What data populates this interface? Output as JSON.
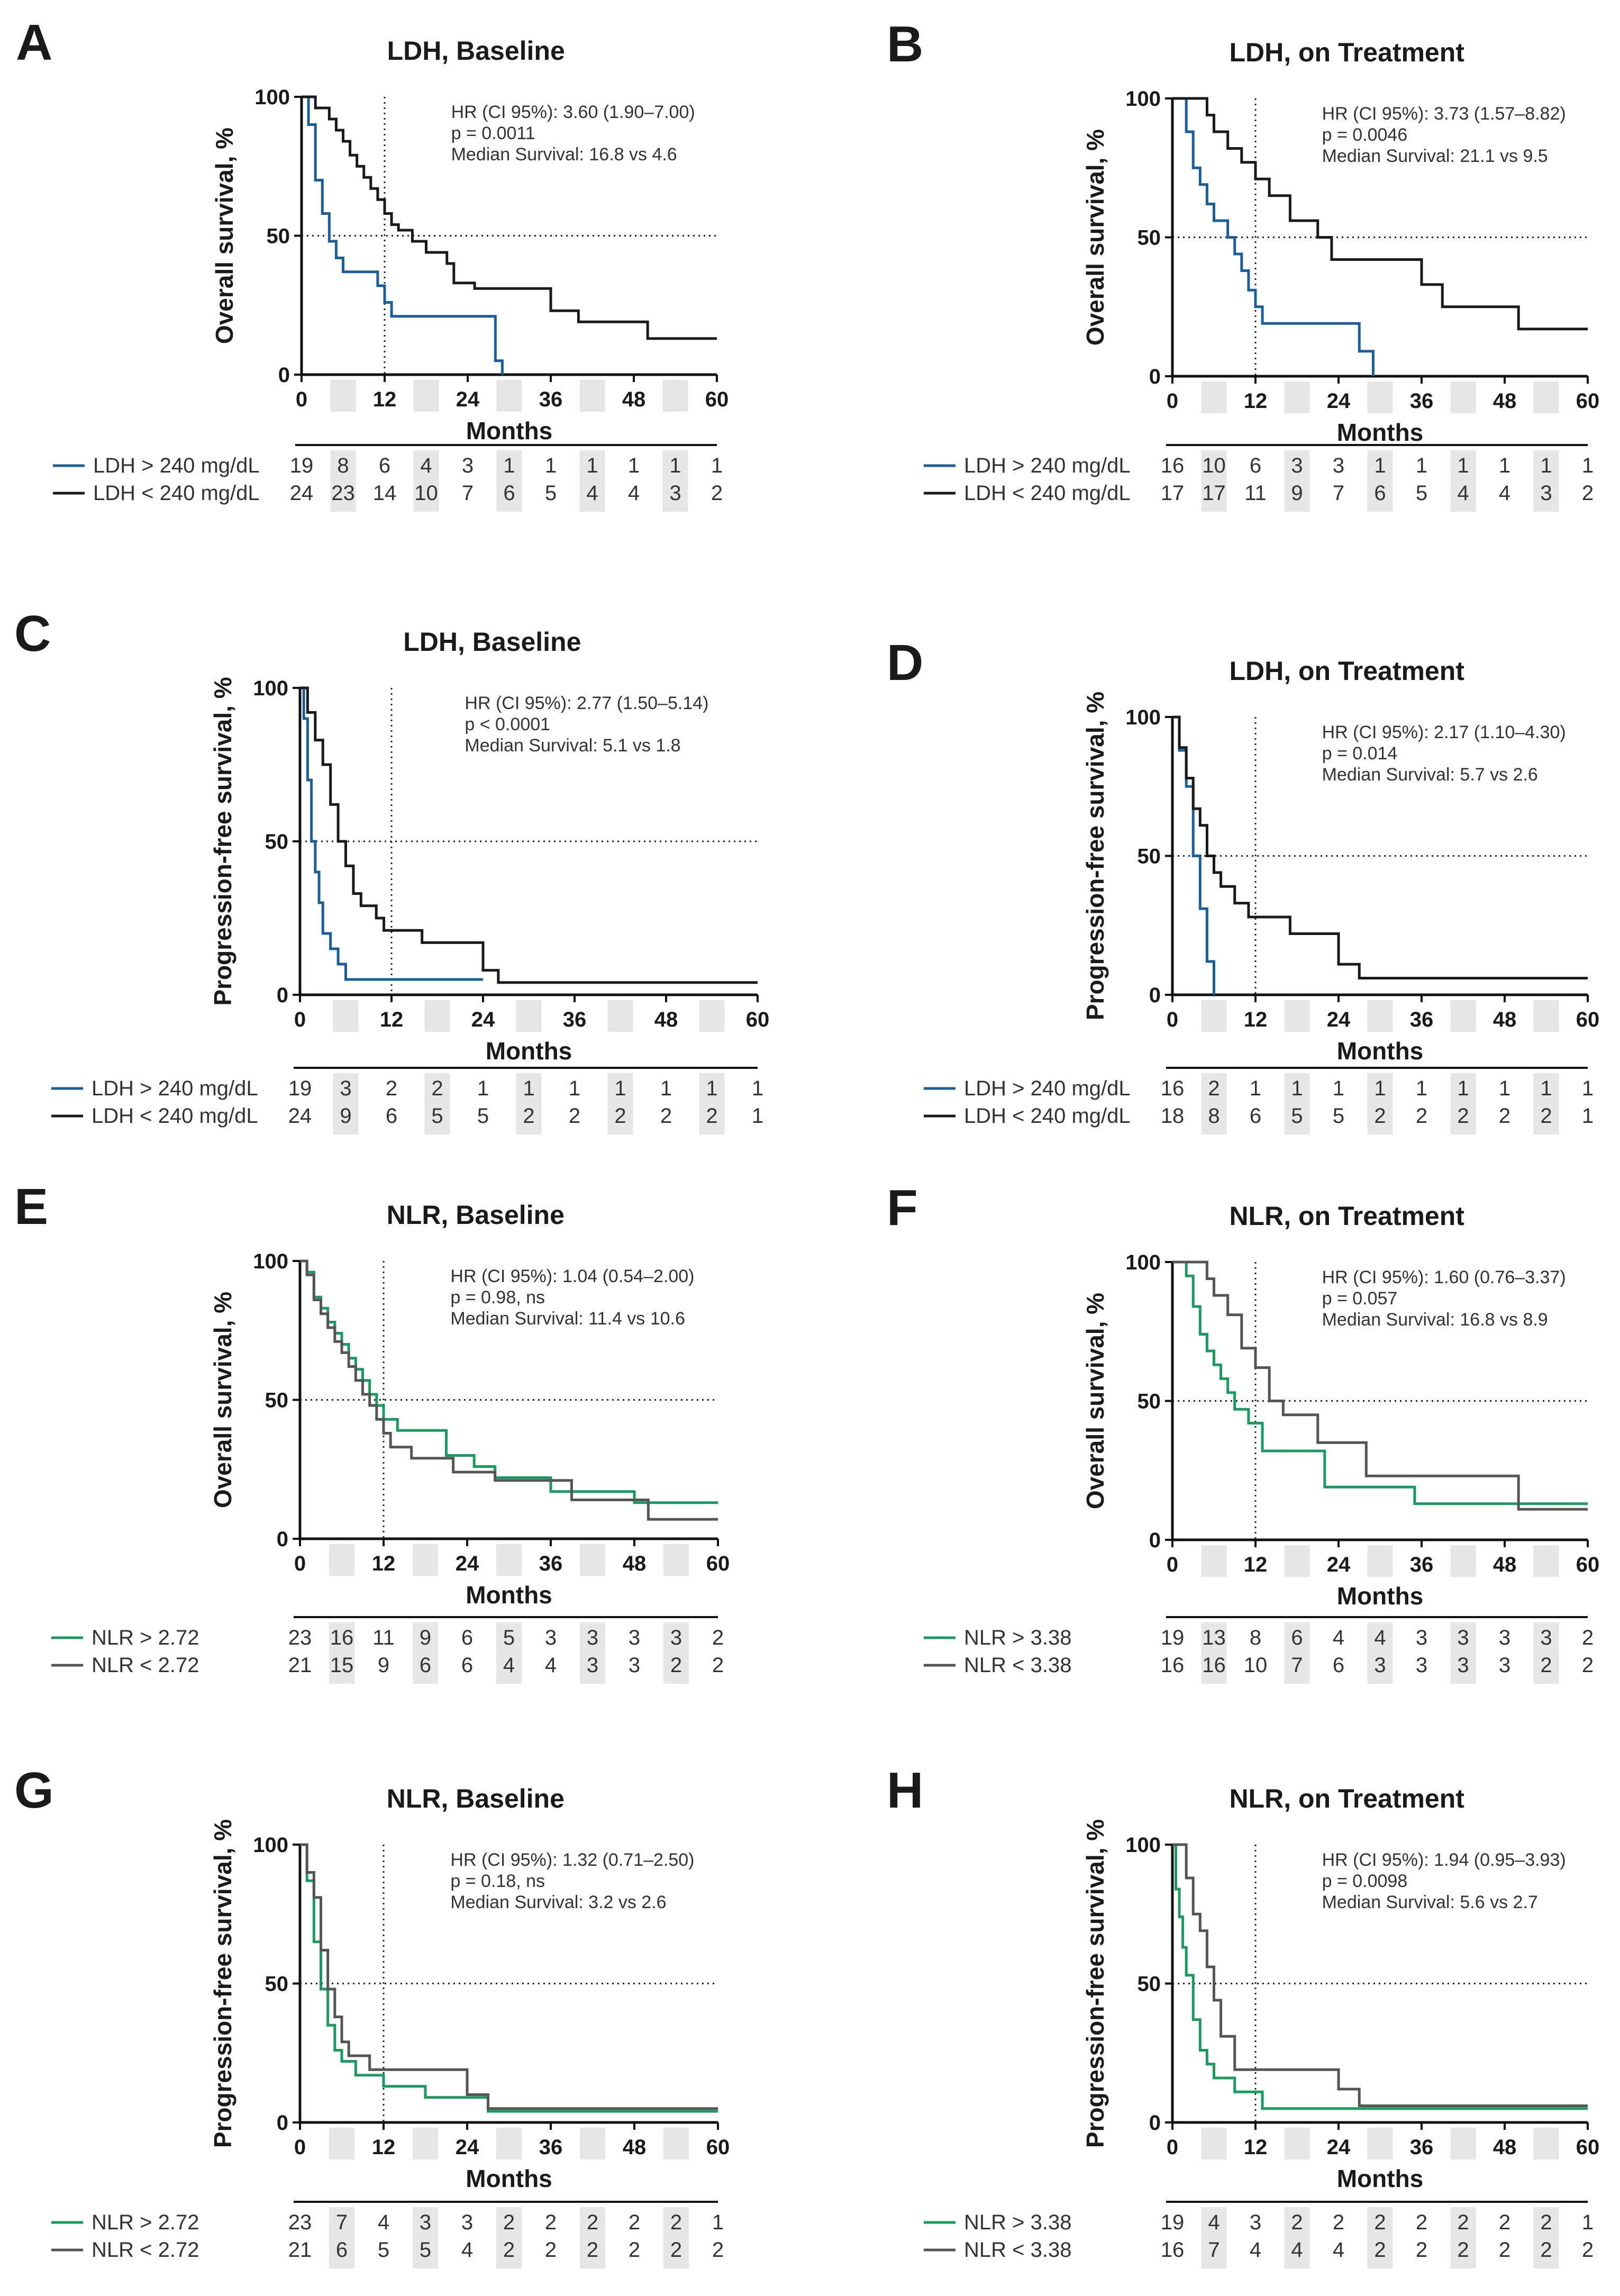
{
  "chart_data": [
    {
      "panel": "A",
      "type": "line",
      "subtype": "kaplan-meier",
      "title": "LDH, Baseline",
      "ylabel": "Overall survival, %",
      "xlabel": "Months",
      "xlim": [
        0,
        60
      ],
      "ylim": [
        0,
        100
      ],
      "xticks": [
        "0",
        "12",
        "24",
        "36",
        "48",
        "60"
      ],
      "yticks": [
        "0",
        "50",
        "100"
      ],
      "stats": [
        "HR (CI 95%): 3.60 (1.90–7.00)",
        "p = 0.0011",
        "Median Survival: 16.8 vs 4.6"
      ],
      "median_lines": {
        "x": 12,
        "y": 50
      },
      "series": [
        {
          "name": "LDH > 240 mg/dL",
          "color": "#1a5e9a",
          "x": [
            0,
            1,
            2,
            3,
            4,
            5,
            6,
            7,
            11,
            12,
            13,
            24,
            28,
            29
          ],
          "y": [
            100,
            90,
            70,
            58,
            48,
            42,
            37,
            37,
            32,
            26,
            21,
            21,
            5,
            0
          ],
          "at_risk": [
            "19",
            "8",
            "6",
            "4",
            "3",
            "1",
            "1",
            "1",
            "1",
            "1",
            "1"
          ]
        },
        {
          "name": "LDH < 240 mg/dL",
          "color": "#1a1a1a",
          "x": [
            0,
            2,
            4,
            5,
            6,
            7,
            8,
            9,
            10,
            11,
            12,
            13,
            14,
            16,
            18,
            21,
            22,
            25,
            36,
            40,
            50,
            60
          ],
          "y": [
            100,
            96,
            92,
            88,
            84,
            79,
            75,
            71,
            67,
            63,
            58,
            54,
            52,
            48,
            44,
            40,
            33,
            31,
            23,
            19,
            13,
            13
          ],
          "at_risk": [
            "24",
            "23",
            "14",
            "10",
            "7",
            "6",
            "5",
            "4",
            "4",
            "3",
            "2"
          ]
        }
      ]
    },
    {
      "panel": "B",
      "type": "line",
      "subtype": "kaplan-meier",
      "title": "LDH, on Treatment",
      "ylabel": "Overall survival, %",
      "xlabel": "Months",
      "xlim": [
        0,
        60
      ],
      "ylim": [
        0,
        100
      ],
      "xticks": [
        "0",
        "12",
        "24",
        "36",
        "48",
        "60"
      ],
      "yticks": [
        "0",
        "50",
        "100"
      ],
      "stats": [
        "HR (CI 95%): 3.73 (1.57–8.82)",
        "p = 0.0046",
        "Median Survival: 21.1 vs 9.5"
      ],
      "median_lines": {
        "x": 12,
        "y": 50
      },
      "series": [
        {
          "name": "LDH > 240 mg/dL",
          "color": "#1a5e9a",
          "x": [
            0,
            2,
            3,
            4,
            5,
            6,
            7,
            8,
            9,
            10,
            11,
            12,
            13,
            27,
            29
          ],
          "y": [
            100,
            88,
            75,
            69,
            62,
            56,
            56,
            50,
            44,
            38,
            31,
            25,
            19,
            9,
            0
          ],
          "at_risk": [
            "16",
            "10",
            "6",
            "3",
            "3",
            "1",
            "1",
            "1",
            "1",
            "1",
            "1"
          ]
        },
        {
          "name": "LDH < 240 mg/dL",
          "color": "#1a1a1a",
          "x": [
            0,
            5,
            6,
            8,
            10,
            12,
            14,
            17,
            21,
            23,
            34,
            36,
            39,
            50,
            60
          ],
          "y": [
            100,
            94,
            88,
            82,
            77,
            71,
            65,
            56,
            50,
            42,
            42,
            33,
            25,
            17,
            17
          ],
          "at_risk": [
            "17",
            "17",
            "11",
            "9",
            "7",
            "6",
            "5",
            "4",
            "4",
            "3",
            "2"
          ]
        }
      ]
    },
    {
      "panel": "C",
      "type": "line",
      "subtype": "kaplan-meier",
      "title": "LDH, Baseline",
      "ylabel": "Progression-free survival, %",
      "xlabel": "Months",
      "xlim": [
        0,
        60
      ],
      "ylim": [
        0,
        100
      ],
      "xticks": [
        "0",
        "12",
        "24",
        "36",
        "48",
        "60"
      ],
      "yticks": [
        "0",
        "50",
        "100"
      ],
      "stats": [
        "HR (CI 95%): 2.77 (1.50–5.14)",
        "p < 0.0001",
        "Median Survival: 5.1 vs 1.8"
      ],
      "median_lines": {
        "x": 12,
        "y": 50
      },
      "series": [
        {
          "name": "LDH > 240 mg/dL",
          "color": "#1a5e9a",
          "x": [
            0,
            0.5,
            1,
            1.5,
            2,
            2.5,
            3,
            4,
            5,
            6,
            24
          ],
          "y": [
            100,
            90,
            70,
            50,
            40,
            30,
            20,
            15,
            10,
            5,
            5
          ],
          "at_risk": [
            "19",
            "3",
            "2",
            "2",
            "1",
            "1",
            "1",
            "1",
            "1",
            "1",
            "1"
          ]
        },
        {
          "name": "LDH < 240 mg/dL",
          "color": "#1a1a1a",
          "x": [
            0,
            1,
            2,
            3,
            4,
            5,
            6,
            7,
            8,
            10,
            11,
            16,
            24,
            26,
            28,
            60
          ],
          "y": [
            100,
            92,
            83,
            75,
            62,
            50,
            42,
            33,
            29,
            25,
            21,
            17,
            8,
            4,
            4,
            4
          ],
          "at_risk": [
            "24",
            "9",
            "6",
            "5",
            "5",
            "2",
            "2",
            "2",
            "2",
            "2",
            "1"
          ]
        }
      ]
    },
    {
      "panel": "D",
      "type": "line",
      "subtype": "kaplan-meier",
      "title": "LDH, on Treatment",
      "ylabel": "Progression-free survival, %",
      "xlabel": "Months",
      "xlim": [
        0,
        60
      ],
      "ylim": [
        0,
        100
      ],
      "xticks": [
        "0",
        "12",
        "24",
        "36",
        "48",
        "60"
      ],
      "yticks": [
        "0",
        "50",
        "100"
      ],
      "stats": [
        "HR (CI 95%): 2.17 (1.10–4.30)",
        "p = 0.014",
        "Median Survival: 5.7 vs 2.6"
      ],
      "median_lines": {
        "x": 12,
        "y": 50
      },
      "series": [
        {
          "name": "LDH > 240 mg/dL",
          "color": "#1a5e9a",
          "x": [
            0,
            1,
            2,
            3,
            4,
            5,
            6
          ],
          "y": [
            100,
            88,
            75,
            50,
            31,
            12,
            0
          ],
          "at_risk": [
            "16",
            "2",
            "1",
            "1",
            "1",
            "1",
            "1",
            "1",
            "1",
            "1",
            "1"
          ]
        },
        {
          "name": "LDH < 240 mg/dL",
          "color": "#1a1a1a",
          "x": [
            0,
            1,
            2,
            3,
            4,
            5,
            6,
            7,
            9,
            11,
            17,
            24,
            27,
            60
          ],
          "y": [
            100,
            89,
            78,
            67,
            61,
            50,
            44,
            39,
            33,
            28,
            22,
            11,
            6,
            6
          ],
          "at_risk": [
            "18",
            "8",
            "6",
            "5",
            "5",
            "2",
            "2",
            "2",
            "2",
            "2",
            "1"
          ]
        }
      ]
    },
    {
      "panel": "E",
      "type": "line",
      "subtype": "kaplan-meier",
      "title": "NLR, Baseline",
      "ylabel": "Overall survival, %",
      "xlabel": "Months",
      "xlim": [
        0,
        60
      ],
      "ylim": [
        0,
        100
      ],
      "xticks": [
        "0",
        "12",
        "24",
        "36",
        "48",
        "60"
      ],
      "yticks": [
        "0",
        "50",
        "100"
      ],
      "stats": [
        "HR (CI 95%): 1.04 (0.54–2.00)",
        "p = 0.98, ns",
        "Median Survival: 11.4 vs 10.6"
      ],
      "median_lines": {
        "x": 12,
        "y": 50
      },
      "series": [
        {
          "name": "NLR > 2.72",
          "color": "#1a9a5e",
          "x": [
            0,
            1,
            2,
            3,
            4,
            5,
            6,
            7,
            8,
            9,
            10,
            11,
            12,
            14,
            21,
            25,
            28,
            36,
            48,
            60
          ],
          "y": [
            100,
            96,
            87,
            83,
            78,
            74,
            70,
            65,
            61,
            57,
            52,
            48,
            43,
            39,
            30,
            26,
            22,
            17,
            13,
            13
          ],
          "at_risk": [
            "23",
            "16",
            "11",
            "9",
            "6",
            "5",
            "3",
            "3",
            "3",
            "3",
            "2"
          ]
        },
        {
          "name": "NLR < 2.72",
          "color": "#555555",
          "x": [
            0,
            1,
            2,
            3,
            4,
            5,
            6,
            7,
            8,
            9,
            10,
            11,
            12,
            13,
            16,
            22,
            28,
            39,
            50,
            60
          ],
          "y": [
            100,
            95,
            86,
            81,
            76,
            71,
            67,
            62,
            57,
            52,
            48,
            43,
            38,
            33,
            29,
            24,
            21,
            14,
            7,
            7
          ],
          "at_risk": [
            "21",
            "15",
            "9",
            "6",
            "6",
            "4",
            "4",
            "3",
            "3",
            "2",
            "2"
          ]
        }
      ]
    },
    {
      "panel": "F",
      "type": "line",
      "subtype": "kaplan-meier",
      "title": "NLR, on Treatment",
      "ylabel": "Overall survival, %",
      "xlabel": "Months",
      "xlim": [
        0,
        60
      ],
      "ylim": [
        0,
        100
      ],
      "xticks": [
        "0",
        "12",
        "24",
        "36",
        "48",
        "60"
      ],
      "yticks": [
        "0",
        "50",
        "100"
      ],
      "stats": [
        "HR (CI 95%): 1.60 (0.76–3.37)",
        "p = 0.057",
        "Median Survival: 16.8 vs 8.9"
      ],
      "median_lines": {
        "x": 12,
        "y": 50
      },
      "series": [
        {
          "name": "NLR > 3.38",
          "color": "#1a9a5e",
          "x": [
            0,
            2,
            3,
            4,
            5,
            6,
            7,
            8,
            9,
            11,
            13,
            22,
            35,
            50,
            60
          ],
          "y": [
            100,
            95,
            84,
            74,
            68,
            63,
            58,
            53,
            47,
            42,
            32,
            19,
            13,
            13,
            13
          ],
          "at_risk": [
            "19",
            "13",
            "8",
            "6",
            "4",
            "4",
            "3",
            "3",
            "3",
            "3",
            "2"
          ]
        },
        {
          "name": "NLR < 3.38",
          "color": "#555555",
          "x": [
            0,
            5,
            6,
            8,
            10,
            12,
            14,
            16,
            21,
            28,
            50,
            60
          ],
          "y": [
            100,
            94,
            88,
            81,
            69,
            62,
            50,
            45,
            35,
            23,
            11,
            11
          ],
          "at_risk": [
            "16",
            "16",
            "10",
            "7",
            "6",
            "3",
            "3",
            "3",
            "3",
            "2",
            "2"
          ]
        }
      ]
    },
    {
      "panel": "G",
      "type": "line",
      "subtype": "kaplan-meier",
      "title": "NLR, Baseline",
      "ylabel": "Progression-free survival, %",
      "xlabel": "Months",
      "xlim": [
        0,
        60
      ],
      "ylim": [
        0,
        100
      ],
      "xticks": [
        "0",
        "12",
        "24",
        "36",
        "48",
        "60"
      ],
      "yticks": [
        "0",
        "50",
        "100"
      ],
      "stats": [
        "HR (CI 95%): 1.32 (0.71–2.50)",
        "p = 0.18, ns",
        "Median Survival: 3.2 vs 2.6"
      ],
      "median_lines": {
        "x": 12,
        "y": 50
      },
      "series": [
        {
          "name": "NLR > 2.72",
          "color": "#1a9a5e",
          "x": [
            0,
            1,
            2,
            3,
            4,
            5,
            6,
            8,
            12,
            18,
            27,
            60
          ],
          "y": [
            100,
            87,
            65,
            48,
            35,
            26,
            22,
            17,
            13,
            9,
            4,
            4
          ],
          "at_risk": [
            "23",
            "7",
            "4",
            "3",
            "3",
            "2",
            "2",
            "2",
            "2",
            "2",
            "1"
          ]
        },
        {
          "name": "NLR < 2.72",
          "color": "#555555",
          "x": [
            0,
            1,
            2,
            3,
            4,
            5,
            6,
            7,
            10,
            24,
            27,
            60
          ],
          "y": [
            100,
            90,
            81,
            62,
            48,
            38,
            29,
            24,
            19,
            10,
            5,
            5
          ],
          "at_risk": [
            "21",
            "6",
            "5",
            "5",
            "4",
            "2",
            "2",
            "2",
            "2",
            "2",
            "2"
          ]
        }
      ]
    },
    {
      "panel": "H",
      "type": "line",
      "subtype": "kaplan-meier",
      "title": "NLR, on Treatment",
      "ylabel": "Progression-free survival, %",
      "xlabel": "Months",
      "xlim": [
        0,
        60
      ],
      "ylim": [
        0,
        100
      ],
      "xticks": [
        "0",
        "12",
        "24",
        "36",
        "48",
        "60"
      ],
      "yticks": [
        "0",
        "50",
        "100"
      ],
      "stats": [
        "HR (CI 95%): 1.94 (0.95–3.93)",
        "p = 0.0098",
        "Median Survival: 5.6 vs 2.7"
      ],
      "median_lines": {
        "x": 12,
        "y": 50
      },
      "series": [
        {
          "name": "NLR > 3.38",
          "color": "#1a9a5e",
          "x": [
            0,
            0.5,
            1,
            1.5,
            2,
            3,
            4,
            5,
            6,
            9,
            13,
            60
          ],
          "y": [
            100,
            84,
            74,
            63,
            53,
            37,
            26,
            21,
            16,
            11,
            5,
            5
          ],
          "at_risk": [
            "19",
            "4",
            "3",
            "2",
            "2",
            "2",
            "2",
            "2",
            "2",
            "2",
            "1"
          ]
        },
        {
          "name": "NLR < 3.38",
          "color": "#555555",
          "x": [
            0,
            2,
            3,
            4,
            5,
            6,
            7,
            9,
            24,
            27,
            60
          ],
          "y": [
            100,
            88,
            75,
            69,
            56,
            44,
            31,
            19,
            12,
            6,
            6
          ],
          "at_risk": [
            "16",
            "7",
            "4",
            "4",
            "4",
            "2",
            "2",
            "2",
            "2",
            "2",
            "2"
          ]
        }
      ]
    }
  ]
}
